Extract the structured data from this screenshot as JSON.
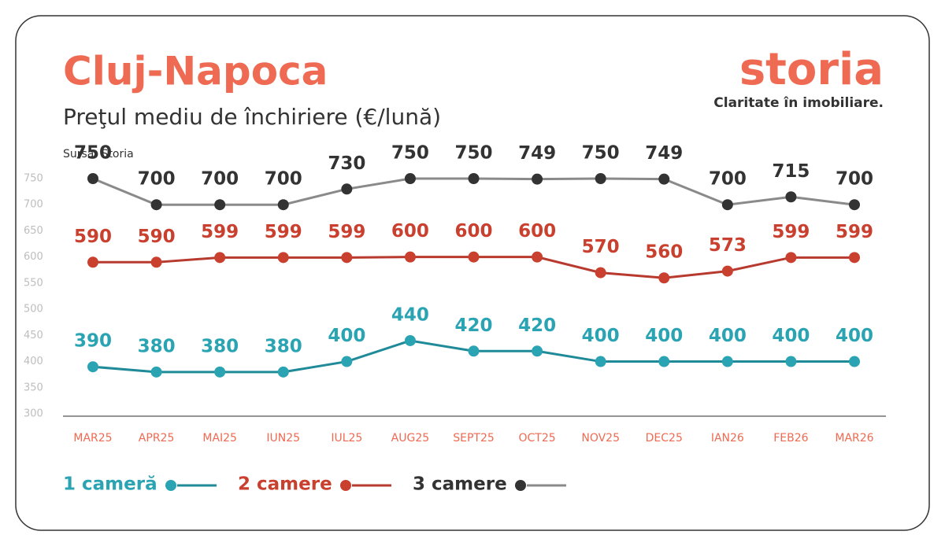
{
  "chart_data": {
    "type": "line",
    "title": "Cluj-Napoca",
    "subtitle": "Preţul mediu de închiriere (€/lună)",
    "source": "Sursa: Storia",
    "brand": "storia",
    "tagline": "Claritate în imobiliare.",
    "categories": [
      "MAR25",
      "APR25",
      "MAI25",
      "IUN25",
      "IUL25",
      "AUG25",
      "SEPT25",
      "OCT25",
      "NOV25",
      "DEC25",
      "IAN26",
      "FEB26",
      "MAR26"
    ],
    "series": [
      {
        "name": "1 cameră",
        "color": "#1f8a98",
        "label_color": "#2aa3b3",
        "marker_color": "#2aa3b3",
        "values": [
          390,
          380,
          380,
          380,
          400,
          440,
          420,
          420,
          400,
          400,
          400,
          400,
          400
        ]
      },
      {
        "name": "2 camere",
        "color": "#b83a2e",
        "label_color": "#c9402f",
        "marker_color": "#c9402f",
        "values": [
          590,
          590,
          599,
          599,
          599,
          600,
          600,
          600,
          570,
          560,
          573,
          599,
          599
        ]
      },
      {
        "name": "3 camere",
        "color": "#8a8a8a",
        "label_color": "#333333",
        "marker_color": "#333333",
        "values": [
          750,
          700,
          700,
          700,
          730,
          750,
          750,
          749,
          750,
          749,
          700,
          715,
          700
        ]
      }
    ],
    "ylim": [
      300,
      750
    ],
    "yticks": [
      300,
      350,
      400,
      450,
      500,
      550,
      600,
      650,
      700,
      750
    ],
    "grid": false,
    "legend": "bottom"
  }
}
